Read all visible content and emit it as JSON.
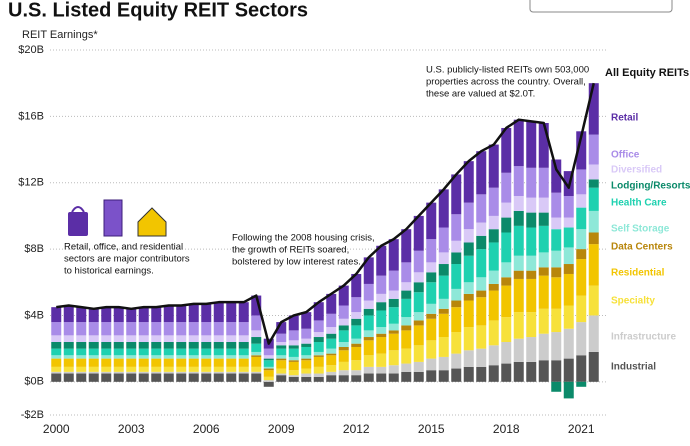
{
  "chart_data": {
    "type": "bar",
    "stacked": true,
    "title": "U.S. Listed Equity REIT Sectors",
    "subtitle": "REIT Earnings*",
    "categories": [
      "2000",
      null,
      null,
      null,
      null,
      null,
      "2003",
      null,
      null,
      null,
      null,
      null,
      "2006",
      null,
      null,
      null,
      null,
      null,
      "2009",
      null,
      null,
      null,
      null,
      null,
      "2012",
      null,
      null,
      null,
      null,
      null,
      "2015",
      null,
      null,
      null,
      null,
      null,
      "2018",
      null,
      null,
      null,
      null,
      null,
      "2021",
      null
    ],
    "ylim": [
      -2,
      20
    ],
    "yticks": [
      {
        "value": -2,
        "label": "-$2B"
      },
      {
        "value": 0,
        "label": "$0B"
      },
      {
        "value": 4,
        "label": "$4B"
      },
      {
        "value": 8,
        "label": "$8B"
      },
      {
        "value": 12,
        "label": "$12B"
      },
      {
        "value": 16,
        "label": "$16B"
      },
      {
        "value": 20,
        "label": "$20B"
      }
    ],
    "grid": true,
    "series": [
      {
        "name": "Industrial",
        "color": "#555555",
        "values": [
          0.5,
          0.5,
          0.5,
          0.5,
          0.5,
          0.5,
          0.5,
          0.5,
          0.5,
          0.5,
          0.5,
          0.5,
          0.5,
          0.5,
          0.5,
          0.5,
          0.5,
          -0.3,
          0.4,
          0.3,
          0.3,
          0.3,
          0.4,
          0.4,
          0.4,
          0.5,
          0.5,
          0.5,
          0.6,
          0.6,
          0.7,
          0.7,
          0.8,
          0.9,
          0.9,
          1.0,
          1.1,
          1.2,
          1.2,
          1.3,
          1.3,
          1.4,
          1.6,
          1.8
        ]
      },
      {
        "name": "Infrastructure",
        "color": "#cccccc",
        "values": [
          0.1,
          0.1,
          0.1,
          0.1,
          0.1,
          0.1,
          0.1,
          0.1,
          0.1,
          0.1,
          0.1,
          0.1,
          0.1,
          0.1,
          0.1,
          0.1,
          0.1,
          0.1,
          0.1,
          0.1,
          0.2,
          0.2,
          0.2,
          0.3,
          0.3,
          0.4,
          0.4,
          0.5,
          0.5,
          0.6,
          0.7,
          0.8,
          0.9,
          1.0,
          1.1,
          1.2,
          1.3,
          1.4,
          1.5,
          1.6,
          1.7,
          1.8,
          2.0,
          2.2
        ]
      },
      {
        "name": "Specialty",
        "color": "#f7e13a",
        "values": [
          0.3,
          0.3,
          0.3,
          0.3,
          0.3,
          0.3,
          0.3,
          0.3,
          0.3,
          0.3,
          0.3,
          0.3,
          0.3,
          0.3,
          0.3,
          0.3,
          0.3,
          0.2,
          0.3,
          0.3,
          0.3,
          0.4,
          0.4,
          0.5,
          0.6,
          0.7,
          0.8,
          0.9,
          0.9,
          1.0,
          1.1,
          1.2,
          1.3,
          1.4,
          1.4,
          1.5,
          1.5,
          1.6,
          1.5,
          1.5,
          1.4,
          1.4,
          1.6,
          1.8
        ]
      },
      {
        "name": "Residential",
        "color": "#f2c500",
        "values": [
          0.5,
          0.5,
          0.5,
          0.5,
          0.5,
          0.5,
          0.5,
          0.5,
          0.5,
          0.5,
          0.5,
          0.5,
          0.5,
          0.5,
          0.5,
          0.5,
          0.6,
          0.4,
          0.5,
          0.5,
          0.5,
          0.6,
          0.6,
          0.7,
          0.8,
          0.9,
          1.0,
          1.0,
          1.1,
          1.2,
          1.3,
          1.4,
          1.5,
          1.6,
          1.7,
          1.8,
          1.9,
          2.0,
          2.0,
          2.0,
          1.9,
          1.9,
          2.2,
          2.5
        ]
      },
      {
        "name": "Data Centers",
        "color": "#b8860b",
        "values": [
          0,
          0,
          0,
          0,
          0,
          0,
          0,
          0,
          0,
          0,
          0,
          0,
          0,
          0,
          0,
          0,
          0.1,
          0.1,
          0.1,
          0.1,
          0.1,
          0.1,
          0.1,
          0.2,
          0.2,
          0.2,
          0.2,
          0.2,
          0.3,
          0.3,
          0.3,
          0.3,
          0.4,
          0.4,
          0.4,
          0.4,
          0.5,
          0.5,
          0.5,
          0.5,
          0.6,
          0.6,
          0.6,
          0.7
        ]
      },
      {
        "name": "Self Storage",
        "color": "#8ee8d8",
        "values": [
          0.2,
          0.2,
          0.2,
          0.2,
          0.2,
          0.2,
          0.2,
          0.2,
          0.2,
          0.2,
          0.2,
          0.2,
          0.2,
          0.2,
          0.2,
          0.2,
          0.2,
          0.1,
          0.2,
          0.2,
          0.2,
          0.2,
          0.3,
          0.3,
          0.3,
          0.4,
          0.4,
          0.4,
          0.5,
          0.5,
          0.6,
          0.6,
          0.7,
          0.7,
          0.8,
          0.8,
          0.9,
          0.9,
          0.9,
          0.9,
          1.0,
          1.0,
          1.2,
          1.3
        ]
      },
      {
        "name": "Health Care",
        "color": "#1fd1b0",
        "values": [
          0.4,
          0.4,
          0.4,
          0.4,
          0.4,
          0.4,
          0.4,
          0.4,
          0.4,
          0.4,
          0.4,
          0.4,
          0.4,
          0.4,
          0.4,
          0.4,
          0.5,
          0.4,
          0.4,
          0.5,
          0.5,
          0.6,
          0.6,
          0.7,
          0.8,
          0.9,
          1.0,
          1.0,
          1.1,
          1.2,
          1.3,
          1.4,
          1.5,
          1.6,
          1.7,
          1.7,
          1.8,
          1.8,
          1.7,
          1.6,
          1.3,
          1.2,
          1.3,
          1.4
        ]
      },
      {
        "name": "Lodging/Resorts",
        "color": "#0b8a6a",
        "values": [
          0.4,
          0.4,
          0.4,
          0.4,
          0.4,
          0.4,
          0.4,
          0.4,
          0.4,
          0.4,
          0.4,
          0.4,
          0.4,
          0.4,
          0.4,
          0.4,
          0.4,
          0.1,
          0.2,
          0.2,
          0.2,
          0.3,
          0.3,
          0.3,
          0.4,
          0.4,
          0.5,
          0.5,
          0.5,
          0.6,
          0.6,
          0.7,
          0.7,
          0.8,
          0.8,
          0.8,
          0.9,
          0.9,
          0.9,
          0.8,
          -0.6,
          -1.0,
          -0.3,
          0.5
        ]
      },
      {
        "name": "Diversified",
        "color": "#d9c9f7",
        "values": [
          0.4,
          0.4,
          0.4,
          0.4,
          0.4,
          0.4,
          0.4,
          0.4,
          0.4,
          0.4,
          0.4,
          0.4,
          0.4,
          0.4,
          0.4,
          0.4,
          0.4,
          0.2,
          0.2,
          0.3,
          0.3,
          0.3,
          0.4,
          0.4,
          0.4,
          0.5,
          0.5,
          0.5,
          0.5,
          0.6,
          0.6,
          0.7,
          0.7,
          0.8,
          0.8,
          0.8,
          0.9,
          0.9,
          0.9,
          0.9,
          0.7,
          0.6,
          0.8,
          0.9
        ]
      },
      {
        "name": "Office",
        "color": "#a98ce8",
        "values": [
          0.8,
          0.8,
          0.8,
          0.8,
          0.8,
          0.8,
          0.8,
          0.8,
          0.8,
          0.8,
          0.8,
          0.8,
          0.8,
          0.8,
          0.8,
          0.8,
          0.9,
          0.4,
          0.5,
          0.6,
          0.6,
          0.7,
          0.8,
          0.8,
          0.9,
          1.0,
          1.1,
          1.2,
          1.2,
          1.3,
          1.4,
          1.5,
          1.6,
          1.6,
          1.7,
          1.7,
          1.8,
          1.8,
          1.8,
          1.8,
          1.5,
          1.3,
          1.5,
          1.8
        ]
      },
      {
        "name": "Retail",
        "color": "#5b2ea6",
        "values": [
          0.9,
          1.0,
          0.9,
          0.8,
          0.9,
          0.9,
          0.8,
          0.9,
          0.9,
          1.0,
          1.0,
          1.1,
          1.1,
          1.2,
          1.2,
          1.2,
          1.2,
          0.6,
          0.7,
          0.9,
          1.0,
          1.1,
          1.2,
          1.2,
          1.4,
          1.6,
          1.8,
          1.9,
          2.0,
          2.1,
          2.2,
          2.3,
          2.4,
          2.5,
          2.6,
          2.6,
          2.7,
          2.8,
          2.8,
          2.7,
          2.0,
          1.5,
          2.3,
          3.1
        ]
      }
    ],
    "line": {
      "name": "All Equity REITs",
      "color": "#111111",
      "values": [
        4.5,
        4.6,
        4.5,
        4.4,
        4.5,
        4.5,
        4.4,
        4.5,
        4.5,
        4.6,
        4.6,
        4.7,
        4.7,
        4.8,
        4.8,
        4.8,
        5.2,
        2.3,
        3.6,
        4.0,
        4.2,
        4.8,
        5.3,
        5.8,
        6.5,
        7.5,
        8.2,
        8.6,
        9.2,
        10.0,
        10.8,
        11.6,
        12.5,
        13.3,
        13.9,
        14.3,
        15.3,
        15.8,
        15.7,
        15.6,
        12.8,
        11.7,
        14.8,
        18.0
      ]
    },
    "annotations": [
      {
        "lines": [
          "U.S. publicly-listed REITs own 503,000",
          "properties across the country. Overall,",
          "these are valued at $2.0T."
        ]
      },
      {
        "lines": [
          "Following the 2008 housing crisis,",
          "the growth of REITs soared,",
          "bolstered by low interest rates."
        ]
      },
      {
        "lines": [
          "Retail, office, and residential",
          "sectors are major contributors",
          "to historical earnings."
        ]
      }
    ]
  }
}
